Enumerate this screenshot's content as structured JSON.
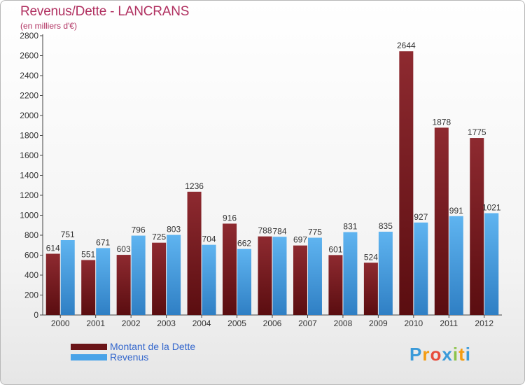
{
  "chart_data": {
    "type": "bar",
    "title": "Revenus/Dette - LANCRANS",
    "subtitle": "(en milliers d'€)",
    "categories": [
      "2000",
      "2001",
      "2002",
      "2003",
      "2004",
      "2005",
      "2006",
      "2007",
      "2008",
      "2009",
      "2010",
      "2011",
      "2012"
    ],
    "series": [
      {
        "name": "Montant de la Dette",
        "color": "#7a1a1f",
        "values": [
          614,
          551,
          603,
          725,
          1236,
          916,
          788,
          697,
          601,
          524,
          2644,
          1878,
          1775
        ]
      },
      {
        "name": "Revenus",
        "color": "#4aa3e8",
        "values": [
          751,
          671,
          796,
          803,
          704,
          662,
          784,
          775,
          831,
          835,
          927,
          991,
          1021
        ]
      }
    ],
    "ylim": [
      0,
      2800
    ],
    "yticks": [
      0,
      200,
      400,
      600,
      800,
      1000,
      1200,
      1400,
      1600,
      1800,
      2000,
      2200,
      2400,
      2600,
      2800
    ],
    "grid": false,
    "legend": "bottom-left"
  },
  "logo": {
    "letters": [
      "P",
      "r",
      "o",
      "x",
      "i",
      "t",
      "i"
    ],
    "colors": [
      "#3a9ad9",
      "#f39c12",
      "#e74c3c",
      "#3a9ad9",
      "#8bc34a",
      "#f39c12",
      "#3a9ad9"
    ]
  }
}
